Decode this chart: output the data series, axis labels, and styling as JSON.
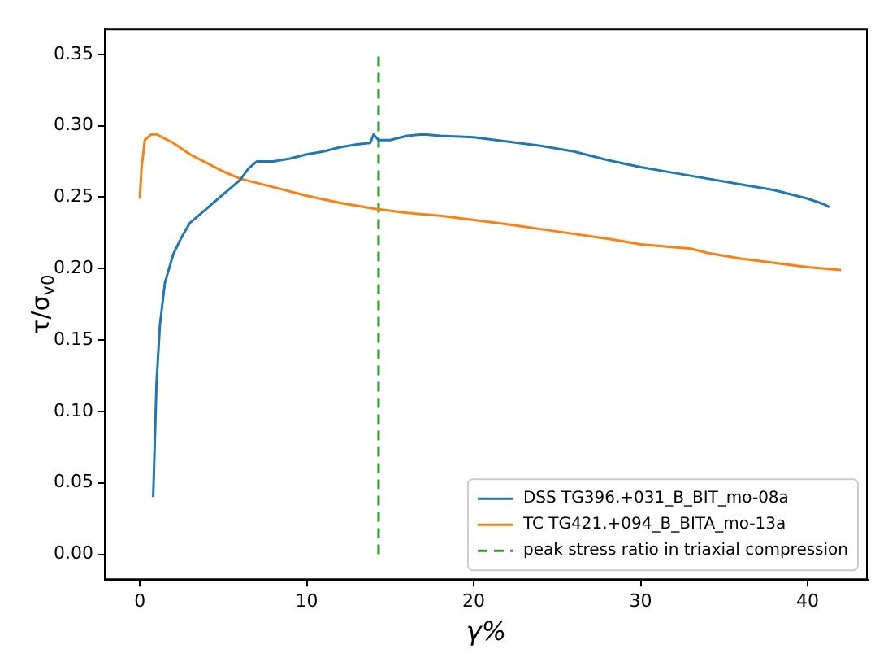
{
  "chart_data": {
    "type": "line",
    "xlabel": "γ%",
    "ylabel": "τ/σ$_{v0}$",
    "xlim": [
      -2.1,
      43.6
    ],
    "ylim": [
      -0.018,
      0.368
    ],
    "xticks": [
      0,
      10,
      20,
      30,
      40
    ],
    "yticks": [
      {
        "value": 0,
        "label": "0.00"
      },
      {
        "value": 0.05,
        "label": "0.05"
      },
      {
        "value": 0.1,
        "label": "0.10"
      },
      {
        "value": 0.15,
        "label": "0.15"
      },
      {
        "value": 0.2,
        "label": "0.20"
      },
      {
        "value": 0.25,
        "label": "0.25"
      },
      {
        "value": 0.3,
        "label": "0.30"
      },
      {
        "value": 0.35,
        "label": "0.35"
      }
    ],
    "grid": false,
    "legend": "bottom right",
    "marker": "none",
    "series": [
      {
        "name": "DSS TG396.+031_B_BIT_mo-08a",
        "color": "#1f77b4",
        "x": [
          0.8,
          0.9,
          1.0,
          1.2,
          1.5,
          2,
          2.5,
          3,
          4,
          5,
          6,
          6.5,
          7,
          8,
          9,
          10,
          11,
          12,
          13,
          13.8,
          14,
          14.3,
          15,
          16,
          17,
          18,
          20,
          22,
          24,
          26,
          28,
          30,
          32,
          34,
          36,
          38,
          40,
          41,
          41.3
        ],
        "values": [
          0.04,
          0.08,
          0.12,
          0.16,
          0.19,
          0.21,
          0.222,
          0.232,
          0.242,
          0.252,
          0.262,
          0.27,
          0.275,
          0.275,
          0.277,
          0.28,
          0.282,
          0.285,
          0.287,
          0.288,
          0.294,
          0.29,
          0.29,
          0.293,
          0.294,
          0.293,
          0.292,
          0.289,
          0.286,
          0.282,
          0.276,
          0.271,
          0.267,
          0.263,
          0.259,
          0.255,
          0.249,
          0.245,
          0.243
        ]
      },
      {
        "name": "TC TG421.+094_B_BITA_mo-13a",
        "color": "#ff7f0e",
        "x": [
          0,
          0.1,
          0.3,
          0.7,
          1,
          2,
          3,
          4,
          5,
          6,
          7,
          8,
          10,
          12,
          14,
          16,
          18,
          20,
          22,
          25,
          28,
          30,
          32,
          33,
          34,
          36,
          38,
          40,
          42
        ],
        "values": [
          0.249,
          0.27,
          0.29,
          0.294,
          0.294,
          0.288,
          0.28,
          0.274,
          0.268,
          0.263,
          0.26,
          0.257,
          0.251,
          0.246,
          0.242,
          0.239,
          0.237,
          0.234,
          0.231,
          0.226,
          0.221,
          0.217,
          0.215,
          0.214,
          0.211,
          0.207,
          0.204,
          0.201,
          0.199
        ]
      },
      {
        "name": "peak stress ratio in triaxial compression",
        "color": "#2ca02c",
        "line_style": "dashed",
        "x": [
          14.3,
          14.3
        ],
        "values": [
          0,
          0.35
        ]
      }
    ]
  }
}
